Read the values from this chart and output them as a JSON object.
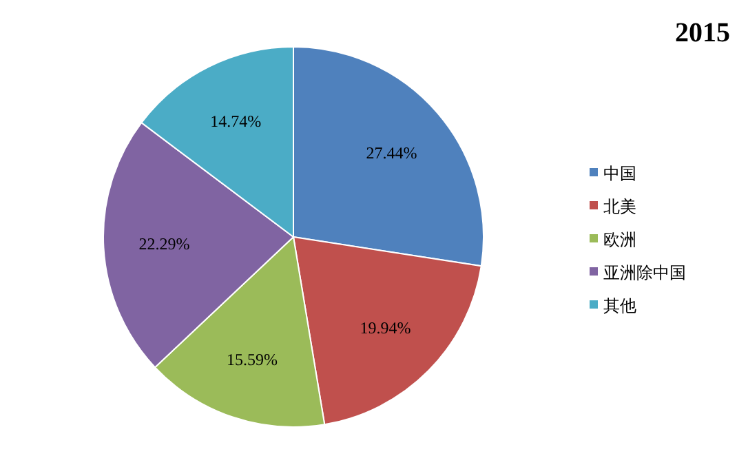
{
  "chart_data": {
    "type": "pie",
    "title": "2015",
    "categories": [
      "中国",
      "北美",
      "欧洲",
      "亚洲除中国",
      "其他"
    ],
    "values": [
      27.44,
      19.94,
      15.59,
      22.29,
      14.74
    ],
    "value_labels": [
      "27.44%",
      "19.94%",
      "15.59%",
      "22.29%",
      "14.74%"
    ],
    "colors": [
      "#4f81bd",
      "#c0504d",
      "#9bbb59",
      "#8064a2",
      "#4bacc6"
    ],
    "legend": "right"
  }
}
